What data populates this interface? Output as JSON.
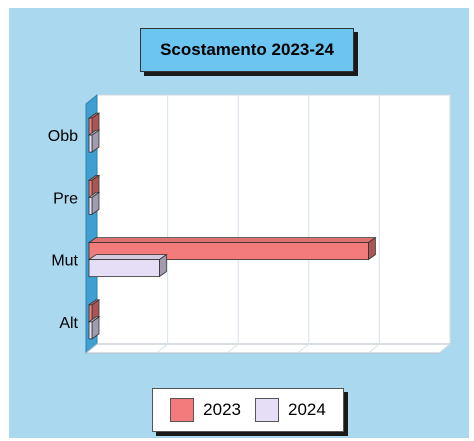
{
  "chart_data": {
    "type": "bar",
    "orientation": "horizontal",
    "title": "Scostamento 2023-24",
    "categories": [
      "Obb",
      "Pre",
      "Mut",
      "Alt"
    ],
    "series": [
      {
        "name": "2023",
        "values": [
          0,
          0,
          100,
          0
        ],
        "color": "#f47b7b"
      },
      {
        "name": "2024",
        "values": [
          0,
          0,
          26,
          0
        ],
        "color": "#e6ddf7"
      }
    ],
    "xlim": [
      0,
      125
    ],
    "grid": true,
    "legend": "bottom",
    "background": "#a9d8ef"
  }
}
